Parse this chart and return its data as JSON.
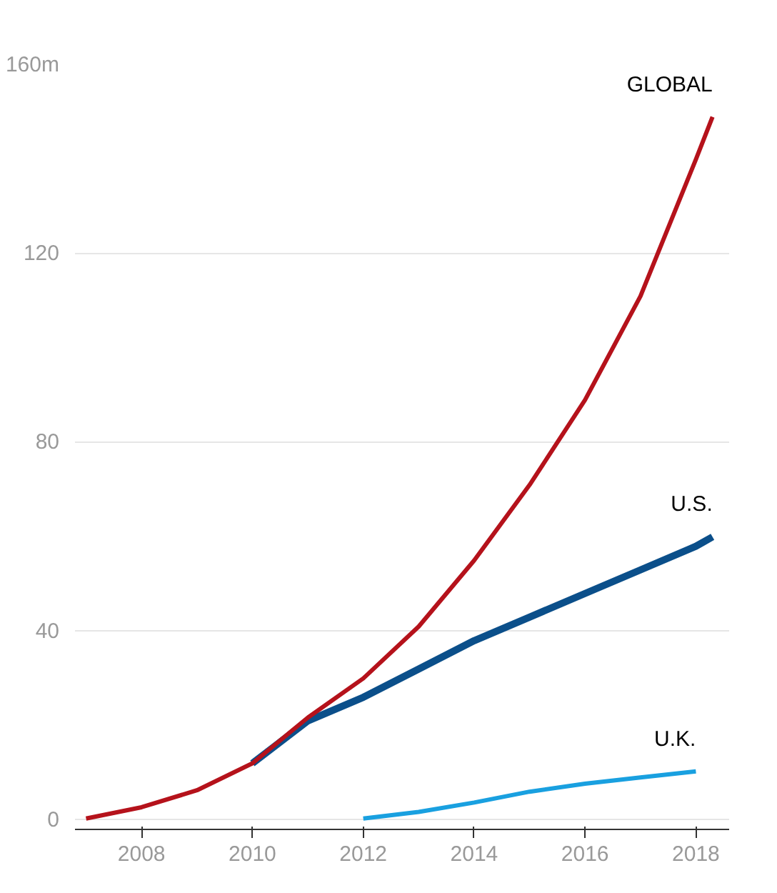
{
  "chart_data": {
    "type": "line",
    "xlim": [
      2006.8,
      2018.6
    ],
    "xticks": [
      2008,
      2010,
      2012,
      2014,
      2016,
      2018
    ],
    "ylim": [
      -2,
      160
    ],
    "yticks": [
      0,
      40,
      80,
      120,
      {
        "value": 160,
        "label": "160m"
      }
    ],
    "grid": "y",
    "marker": "none",
    "line_style": "solid",
    "series": [
      {
        "name": "GLOBAL",
        "color": "#b5121b",
        "x": [
          2007,
          2008,
          2009,
          2010,
          2011,
          2012,
          2013,
          2014,
          2015,
          2016,
          2017,
          2018,
          2018.3
        ],
        "values": [
          0.3,
          2.7,
          6.3,
          12,
          21.7,
          30,
          41,
          55,
          71,
          89,
          111,
          140,
          149
        ]
      },
      {
        "name": "U.S.",
        "color": "#0b4f8a",
        "x": [
          2010,
          2011,
          2012,
          2013,
          2014,
          2015,
          2016,
          2017,
          2018,
          2018.3
        ],
        "values": [
          12,
          21,
          26,
          32,
          38,
          43,
          48,
          53,
          58,
          60
        ]
      },
      {
        "name": "U.K.",
        "color": "#19a0e0",
        "x": [
          2012,
          2013,
          2014,
          2015,
          2016,
          2017,
          2018
        ],
        "values": [
          0.3,
          1.7,
          3.7,
          6,
          7.7,
          9,
          10.3
        ]
      }
    ]
  }
}
